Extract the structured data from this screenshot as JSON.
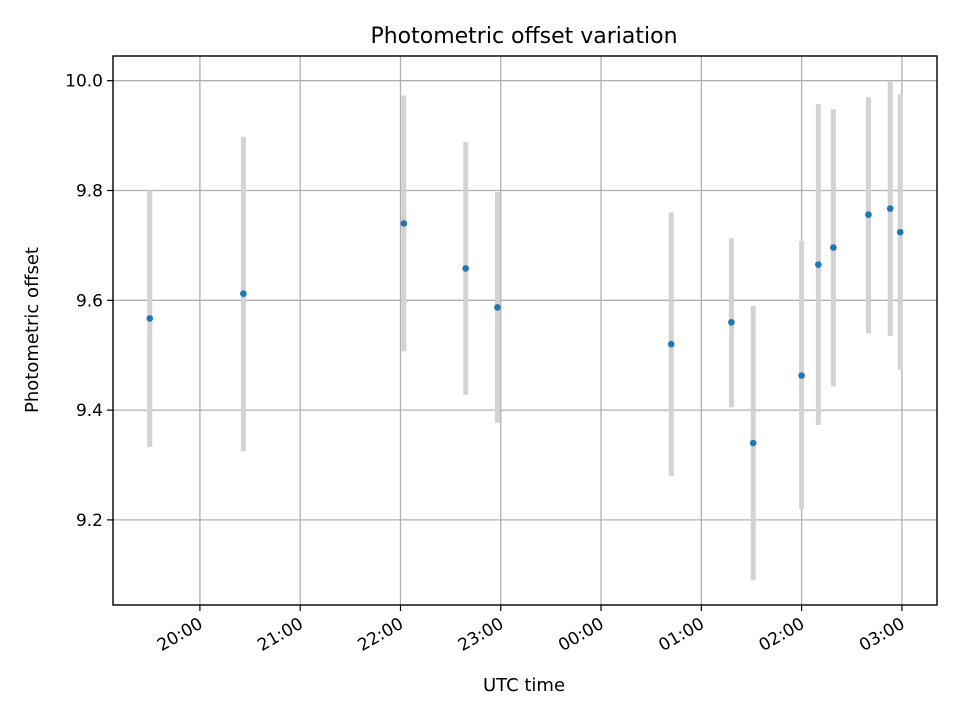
{
  "chart_data": {
    "type": "scatter",
    "title": "Photometric offset variation",
    "xlabel": "UTC time",
    "ylabel": "Photometric offset",
    "x_tick_labels": [
      "20:00",
      "21:00",
      "22:00",
      "23:00",
      "00:00",
      "01:00",
      "02:00",
      "03:00"
    ],
    "y_tick_labels": [
      "9.2",
      "9.4",
      "9.6",
      "9.8",
      "10.0"
    ],
    "y_ticks": [
      9.2,
      9.4,
      9.6,
      9.8,
      10.0
    ],
    "xlim": [
      "19:08",
      "03:21"
    ],
    "ylim": [
      9.045,
      10.045
    ],
    "grid": true,
    "point_color": "#1f77b4",
    "errorbar_color": "#d3d3d3",
    "points": [
      {
        "x": "19:30",
        "y": 9.567,
        "ylow": 9.333,
        "yhigh": 9.8
      },
      {
        "x": "20:26",
        "y": 9.612,
        "ylow": 9.325,
        "yhigh": 9.898
      },
      {
        "x": "22:02",
        "y": 9.74,
        "ylow": 9.507,
        "yhigh": 9.973
      },
      {
        "x": "22:39",
        "y": 9.658,
        "ylow": 9.428,
        "yhigh": 9.888
      },
      {
        "x": "22:58",
        "y": 9.587,
        "ylow": 9.377,
        "yhigh": 9.797
      },
      {
        "x": "00:42",
        "y": 9.52,
        "ylow": 9.28,
        "yhigh": 9.76
      },
      {
        "x": "01:18",
        "y": 9.56,
        "ylow": 9.405,
        "yhigh": 9.713
      },
      {
        "x": "01:31",
        "y": 9.34,
        "ylow": 9.09,
        "yhigh": 9.59
      },
      {
        "x": "02:00",
        "y": 9.463,
        "ylow": 9.22,
        "yhigh": 9.708
      },
      {
        "x": "02:10",
        "y": 9.665,
        "ylow": 9.373,
        "yhigh": 9.957
      },
      {
        "x": "02:19",
        "y": 9.696,
        "ylow": 9.443,
        "yhigh": 9.948
      },
      {
        "x": "02:40",
        "y": 9.756,
        "ylow": 9.54,
        "yhigh": 9.97
      },
      {
        "x": "02:53",
        "y": 9.767,
        "ylow": 9.535,
        "yhigh": 10.0
      },
      {
        "x": "02:59",
        "y": 9.724,
        "ylow": 9.473,
        "yhigh": 9.975
      }
    ]
  }
}
